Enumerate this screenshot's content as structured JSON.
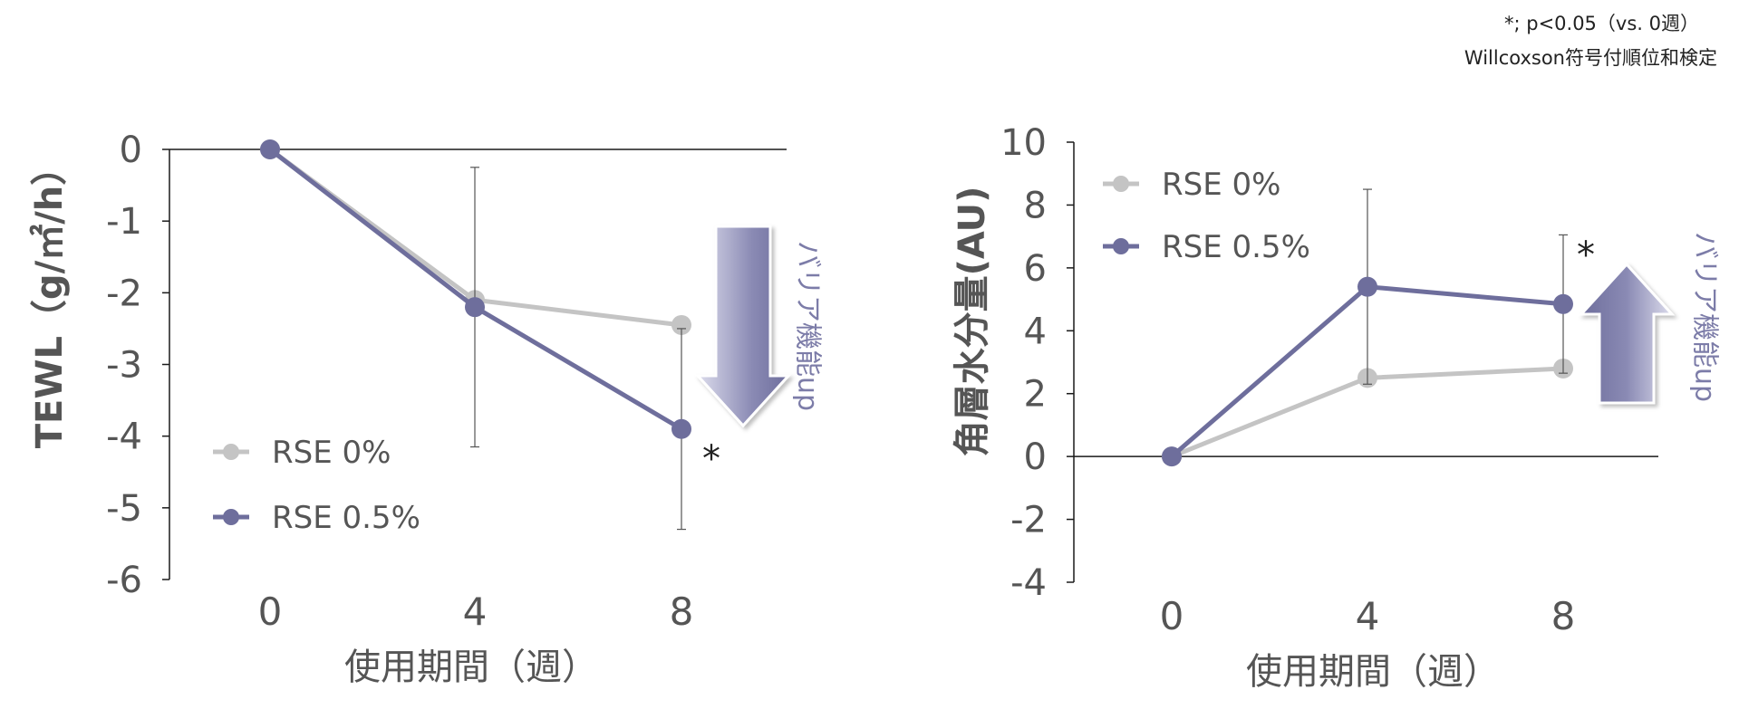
{
  "footnote": {
    "line1": "*; p<0.05（vs. 0週）",
    "line2": "Willcoxson符号付順位和検定"
  },
  "colors": {
    "rse0": "#c4c4c4",
    "rse05": "#6e6e9c",
    "axis": "#1a1a1a",
    "tick_text": "#555555",
    "error_bar": "#555555",
    "arrow_fill": "#7c7ca8",
    "arrow_text": "#7c7ca8"
  },
  "chart_data": [
    {
      "type": "line",
      "title": "",
      "ylabel": "TEWL（g/㎡/h）",
      "xlabel": "使用期間（週）",
      "x": [
        0,
        4,
        8
      ],
      "xlim": [
        -1,
        10
      ],
      "ylim": [
        -6,
        0
      ],
      "yticks": [
        "0",
        "-1",
        "-2",
        "-3",
        "-4",
        "-5",
        "-6"
      ],
      "xticks": [
        "0",
        "4",
        "8"
      ],
      "series": [
        {
          "name": "RSE 0%",
          "values": [
            0,
            -2.1,
            -2.45
          ]
        },
        {
          "name": "RSE  0.5%",
          "values": [
            0,
            -2.2,
            -3.9
          ],
          "error": [
            null,
            1.95,
            1.4
          ]
        }
      ],
      "annotations": {
        "asterisk": "*",
        "arrow_label": "バリア機能up",
        "arrow_direction": "down"
      },
      "legend_placement": "bottom-left",
      "grid": false
    },
    {
      "type": "line",
      "title": "",
      "ylabel": "角層水分量(AU)",
      "xlabel": "使用期間（週）",
      "x": [
        0,
        4,
        8
      ],
      "xlim": [
        -2,
        8
      ],
      "ylim": [
        -4,
        10
      ],
      "yticks": [
        "10",
        "8",
        "6",
        "4",
        "2",
        "0",
        "-2",
        "-4"
      ],
      "xticks": [
        "0",
        "4",
        "8"
      ],
      "series": [
        {
          "name": "RSE 0%",
          "values": [
            0,
            2.5,
            2.8
          ]
        },
        {
          "name": "RSE 0.5%",
          "values": [
            0,
            5.4,
            4.85
          ],
          "error": [
            null,
            3.1,
            2.2
          ]
        }
      ],
      "annotations": {
        "asterisk": "*",
        "arrow_label": "バリア機能up",
        "arrow_direction": "up"
      },
      "legend_placement": "top-left",
      "grid": false
    }
  ]
}
